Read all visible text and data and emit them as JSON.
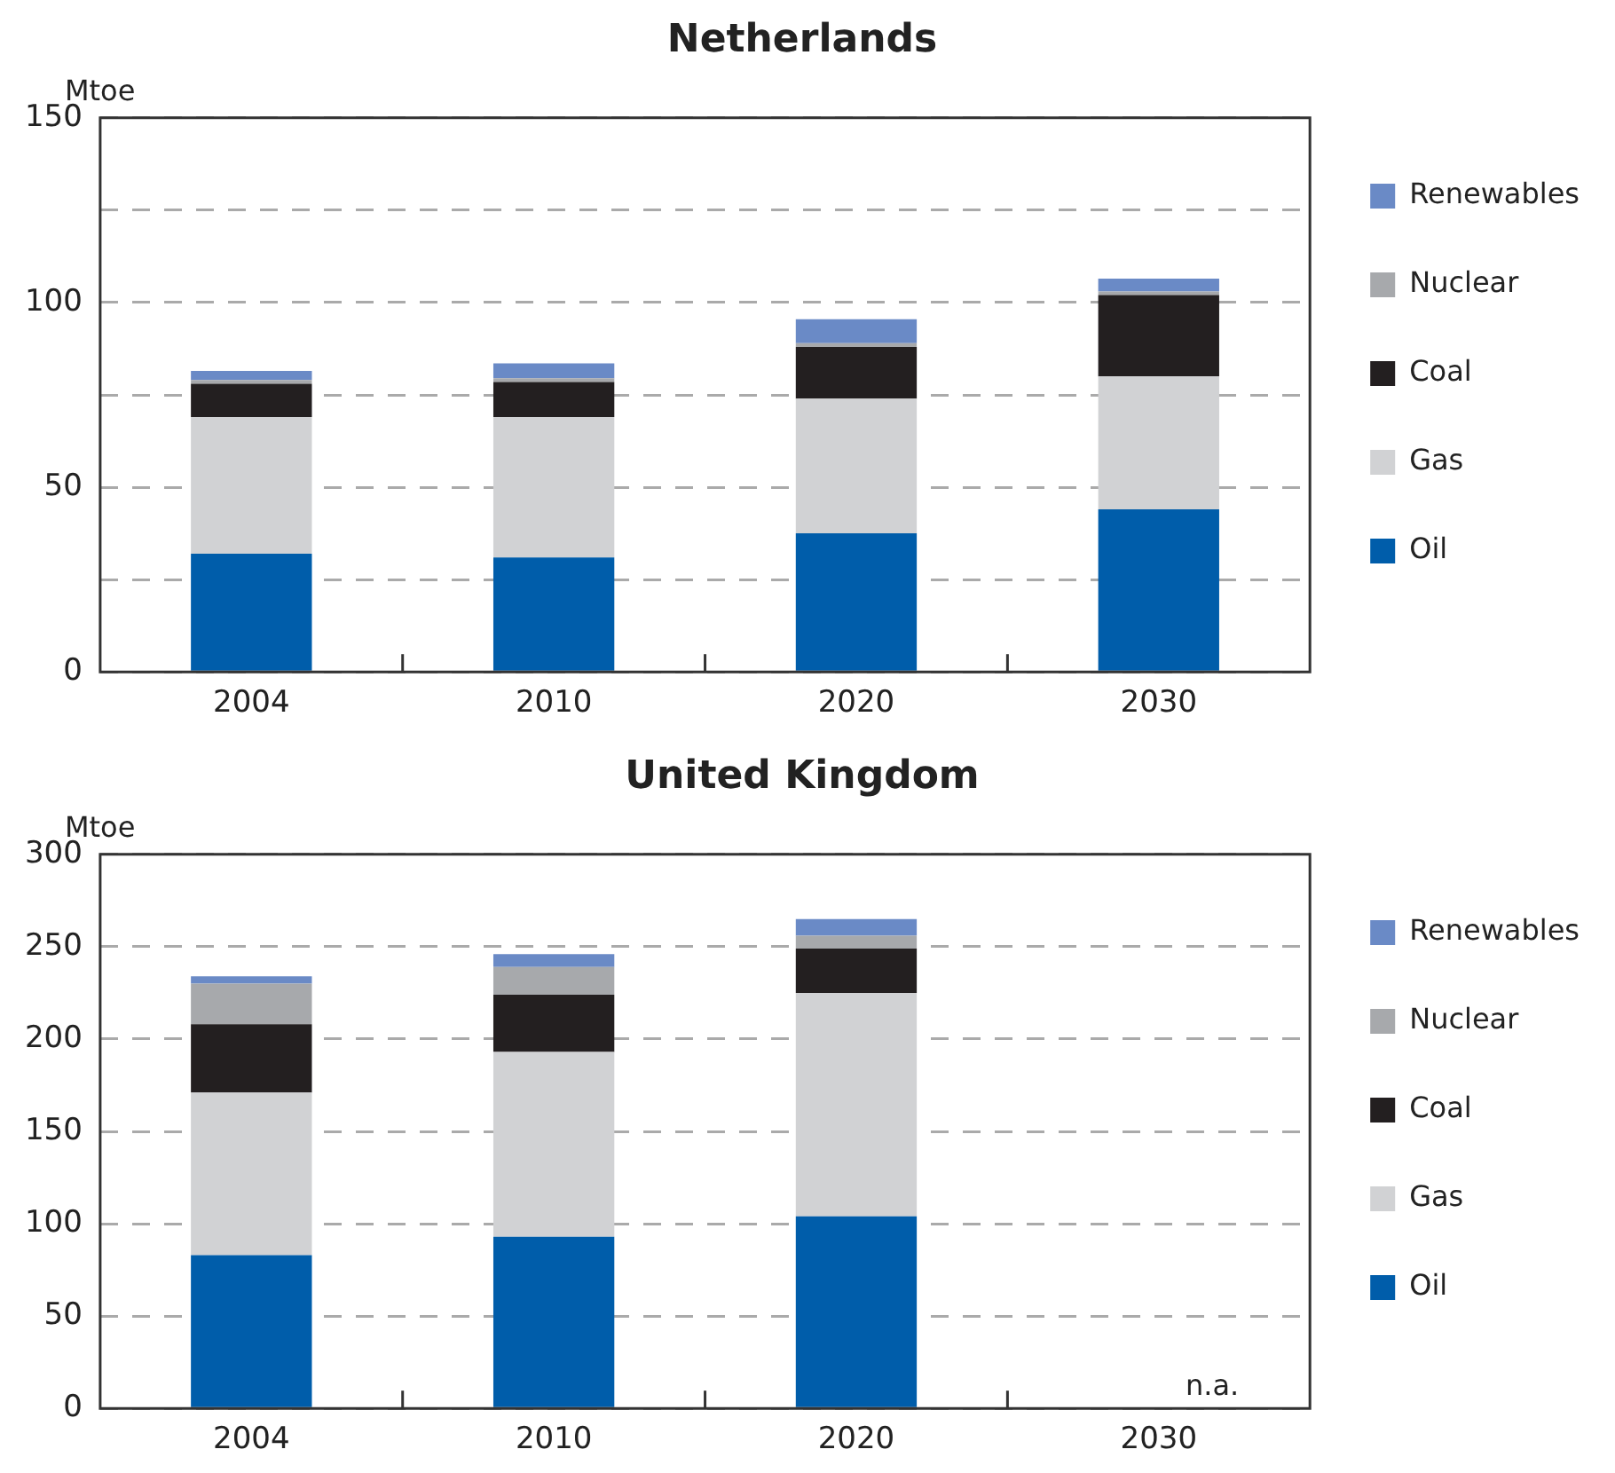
{
  "chart_data": [
    {
      "type": "bar",
      "title": "Netherlands",
      "ylabel": "Mtoe",
      "categories": [
        "2004",
        "2010",
        "2020",
        "2030"
      ],
      "stacked": true,
      "ylim": [
        0,
        150
      ],
      "yticks": [
        0,
        {
          "value": 25,
          "label": null
        },
        50,
        {
          "value": 75,
          "label": null
        },
        100,
        {
          "value": 125,
          "label": null
        },
        150
      ],
      "grid": "y",
      "legend": "right",
      "series": [
        {
          "name": "Oil",
          "color": "#005daa",
          "values": [
            32,
            31,
            37.5,
            44
          ]
        },
        {
          "name": "Gas",
          "color": "#d1d2d4",
          "values": [
            37,
            38,
            36.5,
            36
          ]
        },
        {
          "name": "Coal",
          "color": "#231f20",
          "values": [
            9,
            9.5,
            14,
            22
          ]
        },
        {
          "name": "Nuclear",
          "color": "#a7a9ac",
          "values": [
            1,
            1,
            1,
            1
          ]
        },
        {
          "name": "Renewables",
          "color": "#6a8ac6",
          "values": [
            2.5,
            4,
            6.5,
            3.5
          ]
        }
      ]
    },
    {
      "type": "bar",
      "title": "United Kingdom",
      "ylabel": "Mtoe",
      "categories": [
        "2004",
        "2010",
        "2020",
        "2030"
      ],
      "stacked": true,
      "ylim": [
        0,
        300
      ],
      "yticks": [
        0,
        50,
        100,
        150,
        200,
        250,
        300
      ],
      "grid": "y",
      "legend": "right",
      "annotations": [
        "n.a."
      ],
      "series": [
        {
          "name": "Oil",
          "color": "#005daa",
          "values": [
            83,
            93,
            104,
            null
          ]
        },
        {
          "name": "Gas",
          "color": "#d1d2d4",
          "values": [
            88,
            100,
            121,
            null
          ]
        },
        {
          "name": "Coal",
          "color": "#231f20",
          "values": [
            37,
            31,
            24,
            null
          ]
        },
        {
          "name": "Nuclear",
          "color": "#a7a9ac",
          "values": [
            22,
            15,
            7,
            null
          ]
        },
        {
          "name": "Renewables",
          "color": "#6a8ac6",
          "values": [
            4,
            7,
            9,
            null
          ]
        }
      ]
    }
  ]
}
